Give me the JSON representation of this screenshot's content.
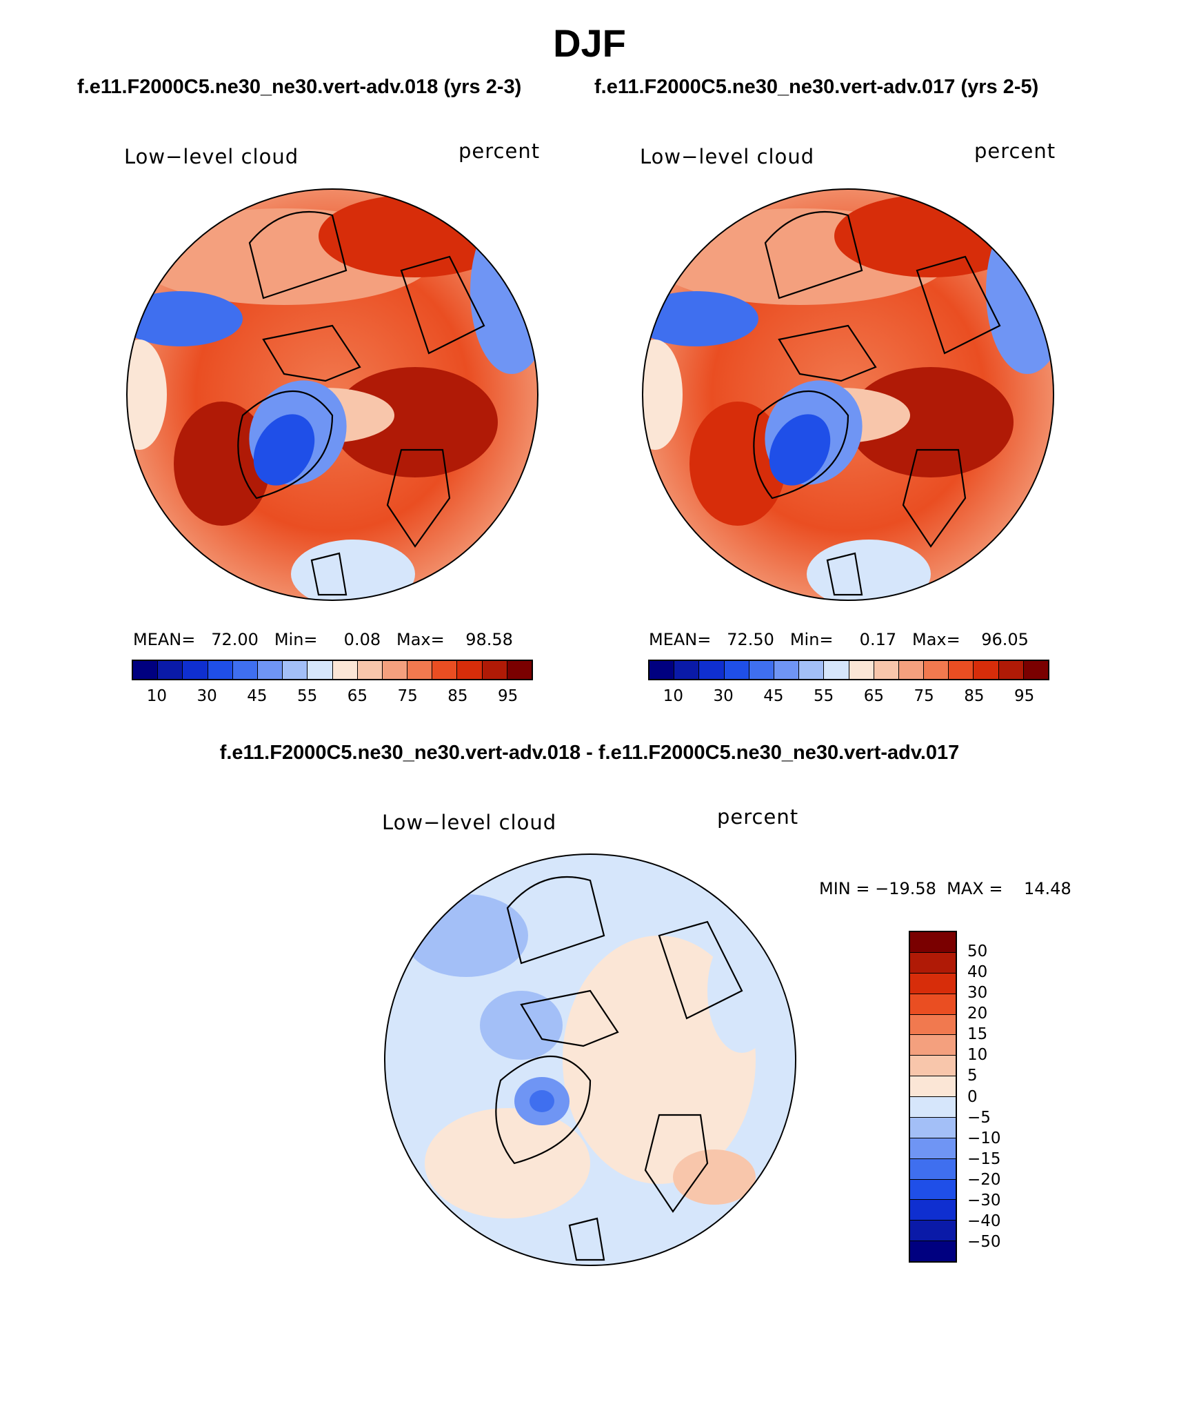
{
  "season_title": "DJF",
  "run_titles": {
    "left": "f.e11.F2000C5.ne30_ne30.vert-adv.018 (yrs 2-3)",
    "right": "f.e11.F2000C5.ne30_ne30.vert-adv.017 (yrs 2-5)"
  },
  "diff_title": "f.e11.F2000C5.ne30_ne30.vert-adv.018 - f.e11.F2000C5.ne30_ne30.vert-adv.017",
  "panels": [
    {
      "variable": "Low−level cloud",
      "units": "percent",
      "stats": "MEAN=   72.00   Min=     0.08   Max=    98.58",
      "mean": 72.0,
      "min": 0.08,
      "max": 98.58
    },
    {
      "variable": "Low−level cloud",
      "units": "percent",
      "stats": "MEAN=   72.50   Min=     0.17   Max=    96.05",
      "mean": 72.5,
      "min": 0.17,
      "max": 96.05
    },
    {
      "variable": "Low−level cloud",
      "units": "percent",
      "stats": "MIN = −19.58  MAX =    14.48",
      "min": -19.58,
      "max": 14.48
    }
  ],
  "colorbar_abs": {
    "tick_labels": [
      "10",
      "30",
      "45",
      "55",
      "65",
      "75",
      "85",
      "95"
    ],
    "colors": [
      "#000080",
      "#0a1aa8",
      "#0f2fd0",
      "#1f4fe8",
      "#3f6fef",
      "#6f95f4",
      "#a3bff7",
      "#d6e6fb",
      "#fbe6d6",
      "#f8c6ab",
      "#f4a07e",
      "#f1794f",
      "#ea4e22",
      "#d72d0a",
      "#b01a06",
      "#7a0000"
    ]
  },
  "colorbar_diff": {
    "tick_labels": [
      "50",
      "40",
      "30",
      "20",
      "15",
      "10",
      "5",
      "0",
      "−5",
      "−10",
      "−15",
      "−20",
      "−30",
      "−40",
      "−50"
    ],
    "colors": [
      "#7a0000",
      "#b01a06",
      "#d72d0a",
      "#ea4e22",
      "#f1794f",
      "#f4a07e",
      "#f8c6ab",
      "#fbe6d6",
      "#d6e6fb",
      "#a3bff7",
      "#6f95f4",
      "#3f6fef",
      "#1f4fe8",
      "#0f2fd0",
      "#0a1aa8",
      "#000080"
    ]
  }
}
